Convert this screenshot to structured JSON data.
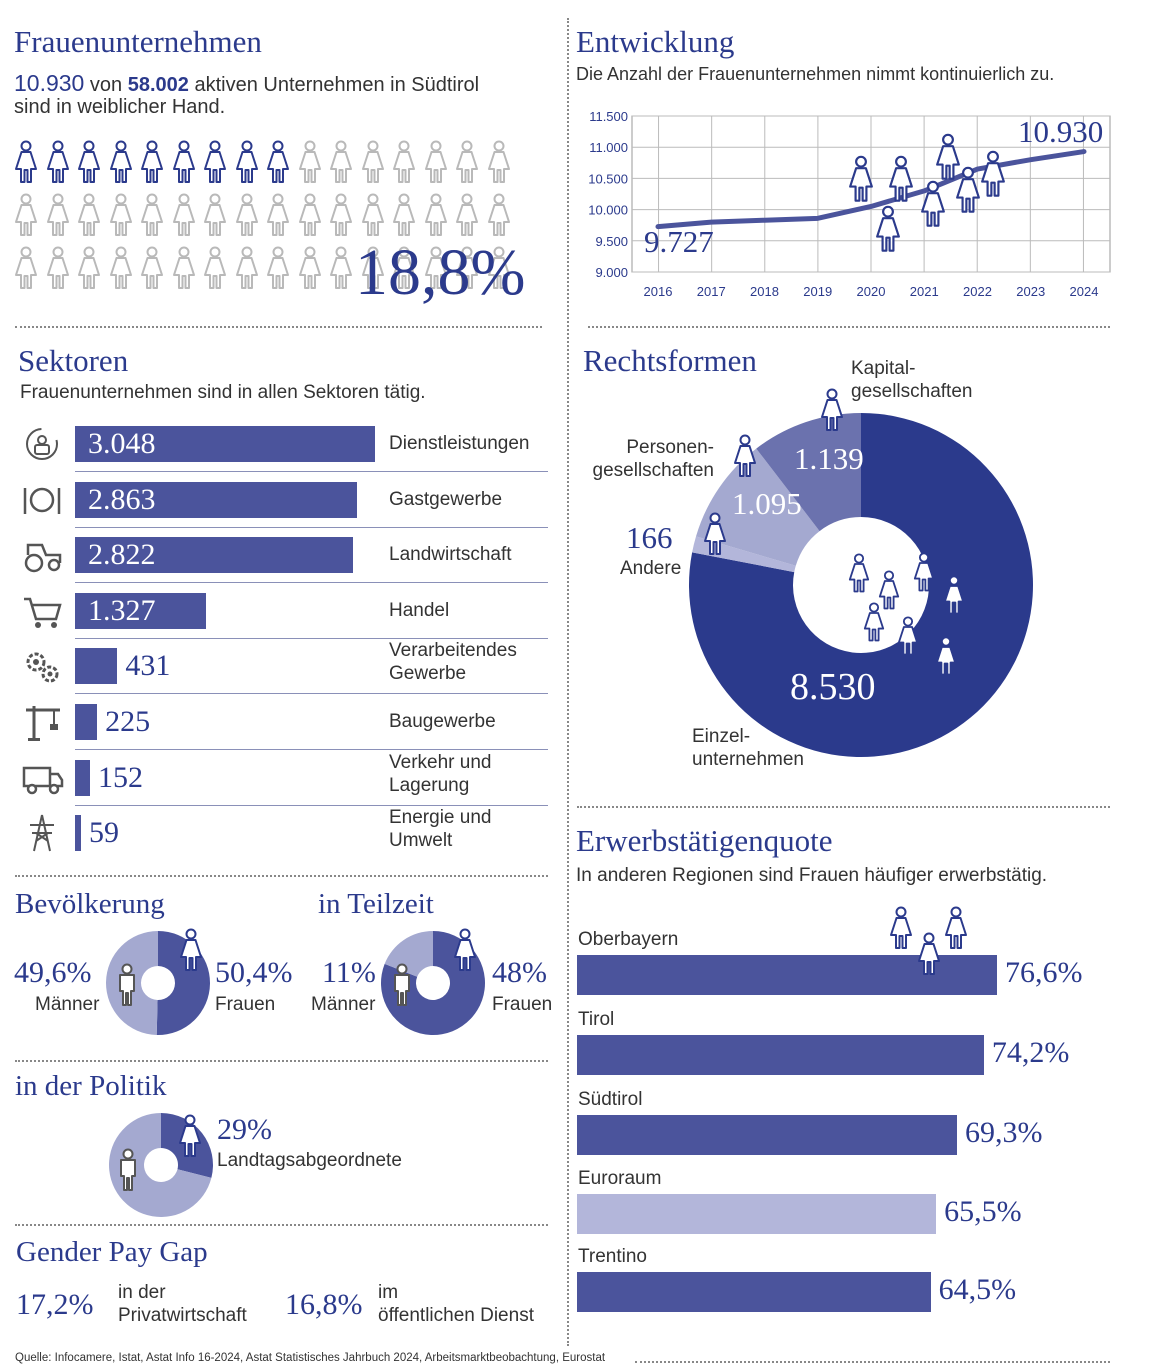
{
  "colors": {
    "primary": "#2b3a8c",
    "bar": "#4b549c",
    "medium": "#6b72ae",
    "light": "#a4a9d0",
    "lighter": "#b3b6da",
    "grey": "#b9b9b9"
  },
  "women": {
    "title": "Frauenunternehmen",
    "count": "10.930",
    "connector": "von",
    "total": "58.002",
    "text1": "aktiven Unternehmen in Südtirol",
    "text2": "sind in weiblicher Hand.",
    "share": "18,8%",
    "icons_total": 48,
    "icons_female": 9
  },
  "development": {
    "title": "Entwicklung",
    "subtitle": "Die Anzahl der Frauenunternehmen nimmt kontinuierlich zu.",
    "start_label": "9.727",
    "end_label": "10.930"
  },
  "sectors": {
    "title": "Sektoren",
    "subtitle": "Frauenunternehmen sind in allen Sektoren tätig.",
    "items": [
      {
        "value": "3.048",
        "label": "Dienstleistungen",
        "icon": "service-icon"
      },
      {
        "value": "2.863",
        "label": "Gastgewerbe",
        "icon": "cutlery-icon"
      },
      {
        "value": "2.822",
        "label": "Landwirtschaft",
        "icon": "tractor-icon"
      },
      {
        "value": "1.327",
        "label": "Handel",
        "icon": "cart-icon"
      },
      {
        "value": "431",
        "label": "Verarbeitendes Gewerbe",
        "icon": "gears-icon"
      },
      {
        "value": "225",
        "label": "Baugewerbe",
        "icon": "crane-icon"
      },
      {
        "value": "152",
        "label": "Verkehr und Lagerung",
        "icon": "truck-icon"
      },
      {
        "value": "59",
        "label": "Energie und Umwelt",
        "icon": "power-pylon-icon"
      }
    ]
  },
  "legal": {
    "title": "Rechtsformen",
    "items": [
      {
        "value": "8.530",
        "label": "Einzelunternehmen"
      },
      {
        "value": "166",
        "label": "Andere"
      },
      {
        "value": "1.095",
        "label": "Personengesellschaften"
      },
      {
        "value": "1.139",
        "label": "Kapitalgesellschaften"
      }
    ],
    "label_einzel_1": "Einzel-",
    "label_einzel_2": "unternehmen",
    "label_personen_1": "Personen-",
    "label_personen_2": "gesellschaften",
    "label_kapital_1": "Kapital-",
    "label_kapital_2": "gesellschaften",
    "label_andere": "Andere"
  },
  "population": {
    "title": "Bevölkerung",
    "men_value": "49,6%",
    "men_label": "Männer",
    "women_value": "50,4%",
    "women_label": "Frauen"
  },
  "parttime": {
    "title": "in Teilzeit",
    "men_value": "11%",
    "men_label": "Männer",
    "women_value": "48%",
    "women_label": "Frauen"
  },
  "politics": {
    "title": "in der Politik",
    "value": "29%",
    "label": "Landtagsabgeordnete"
  },
  "paygap": {
    "title": "Gender Pay Gap",
    "private_value": "17,2%",
    "private_label_1": "in der",
    "private_label_2": "Privatwirtschaft",
    "public_value": "16,8%",
    "public_label_1": "im",
    "public_label_2": "öffentlichen Dienst"
  },
  "employment": {
    "title": "Erwerbstätigenquote",
    "subtitle": "In anderen Regionen sind Frauen häufiger erwerbstätig.",
    "items": [
      {
        "label": "Oberbayern",
        "value": "76,6%"
      },
      {
        "label": "Tirol",
        "value": "74,2%"
      },
      {
        "label": "Südtirol",
        "value": "69,3%"
      },
      {
        "label": "Euroraum",
        "value": "65,5%"
      },
      {
        "label": "Trentino",
        "value": "64,5%"
      }
    ]
  },
  "source": "Quelle: Infocamere, Istat, Astat Info 16-2024, Astat Statistisches Jahrbuch 2024, Arbeitsmarktbeobachtung, Eurostat",
  "chart_data": [
    {
      "type": "line",
      "title": "Entwicklung",
      "x": [
        2016,
        2017,
        2018,
        2019,
        2020,
        2021,
        2022,
        2023,
        2024
      ],
      "values": [
        9727,
        9800,
        9830,
        9860,
        10050,
        10300,
        10650,
        10800,
        10930
      ],
      "ylim": [
        9000,
        11500
      ],
      "yticks": [
        "9.000",
        "9.500",
        "10.000",
        "10.500",
        "11.000",
        "11.500"
      ],
      "xticks": [
        "2016",
        "2017",
        "2018",
        "2019",
        "2020",
        "2021",
        "2022",
        "2023",
        "2024"
      ],
      "grid": true
    },
    {
      "type": "bar",
      "title": "Sektoren",
      "categories": [
        "Dienstleistungen",
        "Gastgewerbe",
        "Landwirtschaft",
        "Handel",
        "Verarbeitendes Gewerbe",
        "Baugewerbe",
        "Verkehr und Lagerung",
        "Energie und Umwelt"
      ],
      "values": [
        3048,
        2863,
        2822,
        1327,
        431,
        225,
        152,
        59
      ]
    },
    {
      "type": "pie",
      "title": "Rechtsformen",
      "categories": [
        "Einzelunternehmen",
        "Andere",
        "Personengesellschaften",
        "Kapitalgesellschaften"
      ],
      "values": [
        8530,
        166,
        1095,
        1139
      ]
    },
    {
      "type": "pie",
      "title": "Bevölkerung",
      "categories": [
        "Männer",
        "Frauen"
      ],
      "values": [
        49.6,
        50.4
      ]
    },
    {
      "type": "pie",
      "title": "in Teilzeit",
      "categories": [
        "Männer",
        "Frauen"
      ],
      "values": [
        11,
        48
      ]
    },
    {
      "type": "pie",
      "title": "in der Politik",
      "categories": [
        "Landtagsabgeordnete"
      ],
      "values": [
        29
      ]
    },
    {
      "type": "bar",
      "title": "Erwerbstätigenquote",
      "categories": [
        "Oberbayern",
        "Tirol",
        "Südtirol",
        "Euroraum",
        "Trentino"
      ],
      "values": [
        76.6,
        74.2,
        69.3,
        65.5,
        64.5
      ]
    }
  ]
}
